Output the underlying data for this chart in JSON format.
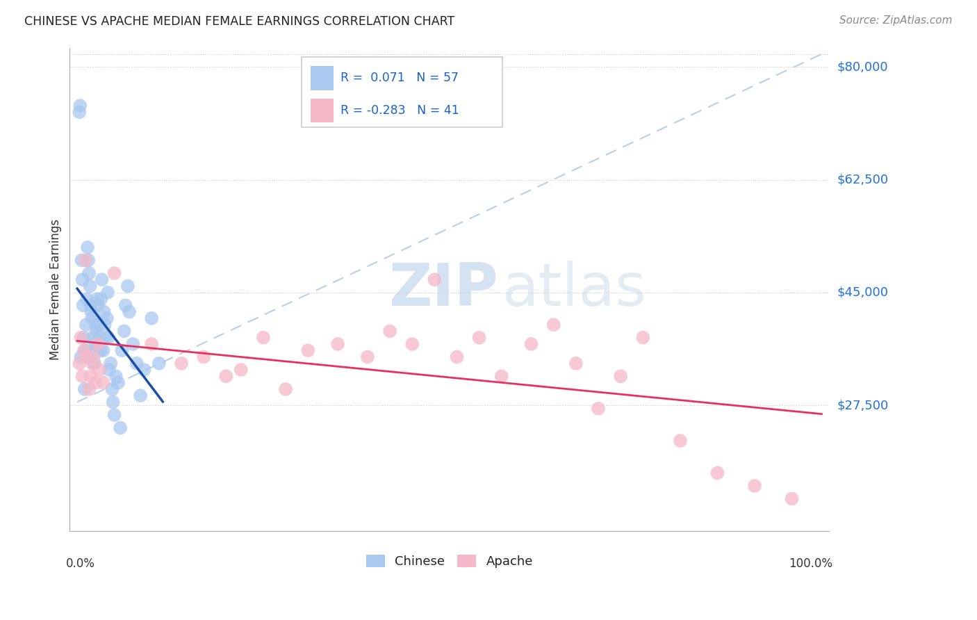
{
  "title": "CHINESE VS APACHE MEDIAN FEMALE EARNINGS CORRELATION CHART",
  "source": "Source: ZipAtlas.com",
  "ylabel": "Median Female Earnings",
  "ytick_values": [
    27500,
    45000,
    62500,
    80000
  ],
  "ytick_labels_right": [
    "$27,500",
    "$45,000",
    "$62,500",
    "$80,000"
  ],
  "ymin": 8000,
  "ymax": 83000,
  "xmin": -0.01,
  "xmax": 1.01,
  "chinese_R": 0.071,
  "chinese_N": 57,
  "apache_R": -0.283,
  "apache_N": 41,
  "legend_label1": "Chinese",
  "legend_label2": "Apache",
  "chinese_color": "#a8c8f0",
  "apache_color": "#f5b8c8",
  "chinese_line_color": "#1a4da8",
  "apache_line_color": "#e83060",
  "dash_line_color": "#b8cfe8",
  "watermark_color": "#d8e8f5",
  "chinese_x": [
    0.003,
    0.004,
    0.005,
    0.006,
    0.007,
    0.008,
    0.009,
    0.01,
    0.011,
    0.012,
    0.013,
    0.014,
    0.015,
    0.016,
    0.017,
    0.018,
    0.019,
    0.02,
    0.021,
    0.022,
    0.023,
    0.024,
    0.025,
    0.026,
    0.027,
    0.028,
    0.029,
    0.03,
    0.031,
    0.032,
    0.033,
    0.035,
    0.036,
    0.037,
    0.038,
    0.04,
    0.041,
    0.042,
    0.043,
    0.045,
    0.047,
    0.048,
    0.05,
    0.052,
    0.055,
    0.058,
    0.06,
    0.063,
    0.065,
    0.068,
    0.07,
    0.075,
    0.08,
    0.085,
    0.09,
    0.1,
    0.11
  ],
  "chinese_y": [
    73000,
    74000,
    35000,
    50000,
    47000,
    43000,
    38000,
    30000,
    36000,
    40000,
    44000,
    52000,
    50000,
    48000,
    46000,
    43000,
    42000,
    41000,
    38000,
    36000,
    34000,
    37000,
    40000,
    39000,
    44000,
    43000,
    40000,
    38000,
    36000,
    44000,
    47000,
    36000,
    42000,
    40000,
    38000,
    41000,
    45000,
    38000,
    33000,
    34000,
    30000,
    28000,
    26000,
    32000,
    31000,
    24000,
    36000,
    39000,
    43000,
    46000,
    42000,
    37000,
    34000,
    29000,
    33000,
    41000,
    34000
  ],
  "apache_x": [
    0.003,
    0.005,
    0.007,
    0.009,
    0.011,
    0.013,
    0.016,
    0.018,
    0.02,
    0.022,
    0.025,
    0.028,
    0.03,
    0.035,
    0.05,
    0.1,
    0.14,
    0.17,
    0.2,
    0.22,
    0.25,
    0.28,
    0.31,
    0.35,
    0.39,
    0.42,
    0.45,
    0.48,
    0.51,
    0.54,
    0.57,
    0.61,
    0.64,
    0.67,
    0.7,
    0.73,
    0.76,
    0.81,
    0.86,
    0.91,
    0.96
  ],
  "apache_y": [
    34000,
    38000,
    32000,
    36000,
    50000,
    35000,
    30000,
    32000,
    34000,
    35000,
    31000,
    37000,
    33000,
    31000,
    48000,
    37000,
    34000,
    35000,
    32000,
    33000,
    38000,
    30000,
    36000,
    37000,
    35000,
    39000,
    37000,
    47000,
    35000,
    38000,
    32000,
    37000,
    40000,
    34000,
    27000,
    32000,
    38000,
    22000,
    17000,
    15000,
    13000
  ]
}
